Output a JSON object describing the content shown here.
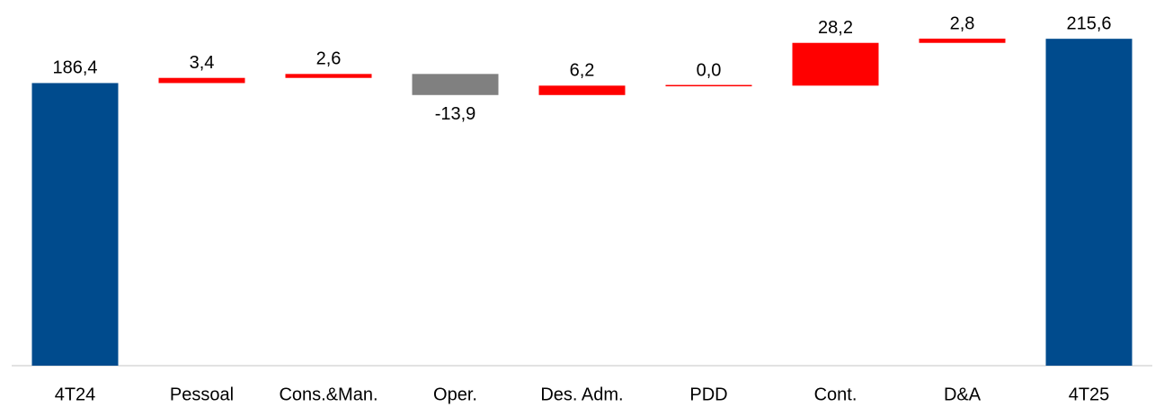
{
  "chart_data": {
    "type": "waterfall",
    "categories": [
      "4T24",
      "Pessoal",
      "Cons.&Man.",
      "Oper.",
      "Des. Adm.",
      "PDD",
      "Cont.",
      "D&A",
      "4T25"
    ],
    "values": [
      186.4,
      3.4,
      2.6,
      -13.9,
      6.2,
      0.0,
      28.2,
      2.8,
      215.6
    ],
    "value_labels": [
      "186,4",
      "3,4",
      "2,6",
      "-13,9",
      "6,2",
      "0,0",
      "28,2",
      "2,8",
      "215,6"
    ],
    "is_total": [
      true,
      false,
      false,
      false,
      false,
      false,
      false,
      false,
      true
    ],
    "colors": {
      "total": "#004b8d",
      "increase": "#ff0000",
      "decrease": "#808080"
    }
  }
}
